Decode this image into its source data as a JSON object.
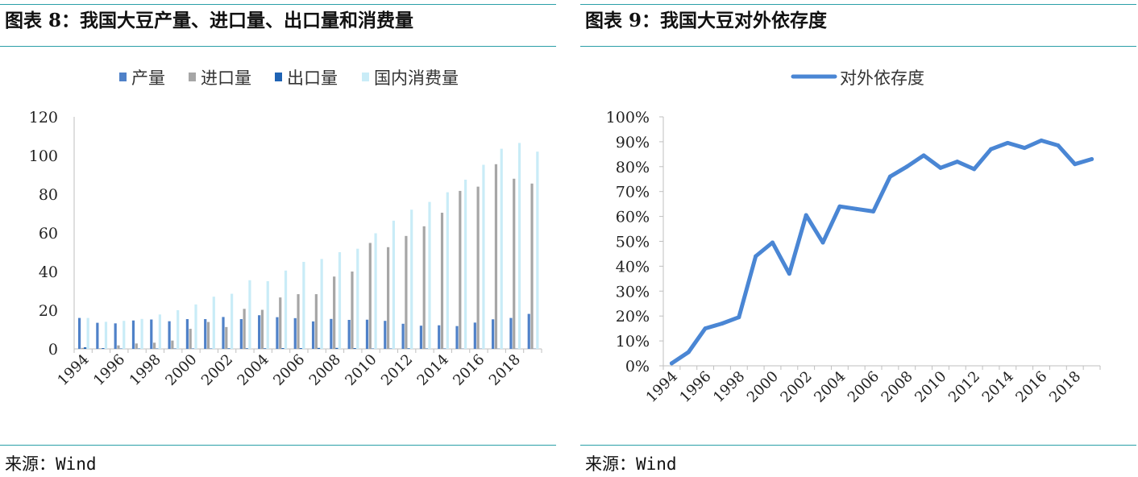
{
  "left": {
    "title": "图表 8：我国大豆产量、进口量、出口量和消费量",
    "source": "来源：Wind"
  },
  "right": {
    "title": "图表 9：我国大豆对外依存度",
    "source": "来源：Wind"
  },
  "colors": {
    "production": "#4f81c8",
    "imports": "#a6a6a6",
    "exports": "#1f63b4",
    "consumption": "#c9ecf7",
    "line": "#4a86d4",
    "rule": "#2a9fa8"
  },
  "chart_data": [
    {
      "type": "bar",
      "title": "",
      "xlabel": "",
      "ylabel": "",
      "ylim": [
        0,
        120
      ],
      "yticks": [
        "0",
        "20",
        "40",
        "60",
        "80",
        "100",
        "120"
      ],
      "x_tick_labels": [
        "1994",
        "1996",
        "1998",
        "2000",
        "2002",
        "2004",
        "2006",
        "2008",
        "2010",
        "2012",
        "2014",
        "2016",
        "2018"
      ],
      "legend_position": "top",
      "categories": [
        "1994",
        "1995",
        "1996",
        "1997",
        "1998",
        "1999",
        "2000",
        "2001",
        "2002",
        "2003",
        "2004",
        "2005",
        "2006",
        "2007",
        "2008",
        "2009",
        "2010",
        "2011",
        "2012",
        "2013",
        "2014",
        "2015",
        "2016",
        "2017",
        "2018",
        "2019"
      ],
      "series": [
        {
          "name": "产量",
          "color": "#4f81c8",
          "values": [
            16,
            13.5,
            13.2,
            14.7,
            15.2,
            14.3,
            15.4,
            15.4,
            16.5,
            15.4,
            17.4,
            16.4,
            15.9,
            14.2,
            15.5,
            15.0,
            15.1,
            14.5,
            13.0,
            12.0,
            12.2,
            11.8,
            13.6,
            15.3,
            16.0,
            18.1
          ]
        },
        {
          "name": "进口量",
          "color": "#a6a6a6",
          "values": [
            0.5,
            0.3,
            1.8,
            2.8,
            3.2,
            4.3,
            10.4,
            13.9,
            11.3,
            20.7,
            20.2,
            26.6,
            28.3,
            28.3,
            37.4,
            40.0,
            54.8,
            52.6,
            58.4,
            63.4,
            70.4,
            81.7,
            83.9,
            95.5,
            88.0,
            85.5
          ]
        },
        {
          "name": "出口量",
          "color": "#1f63b4",
          "values": [
            0.8,
            0.4,
            0.2,
            0.2,
            0.2,
            0.2,
            0.2,
            0.2,
            0.3,
            0.3,
            0.3,
            0.4,
            0.4,
            0.5,
            0.5,
            0.4,
            0.2,
            0.2,
            0.3,
            0.2,
            0.2,
            0.1,
            0.1,
            0.1,
            0.1,
            0.1
          ]
        },
        {
          "name": "国内消费量",
          "color": "#c9ecf7",
          "values": [
            16,
            14,
            14.5,
            15.5,
            17.8,
            20,
            23,
            27,
            28.5,
            35.5,
            35,
            40.5,
            45,
            46.5,
            50,
            51.8,
            59.8,
            66.3,
            72,
            76,
            81,
            87.5,
            95.2,
            103.5,
            106.5,
            102
          ]
        }
      ]
    },
    {
      "type": "line",
      "title": "",
      "xlabel": "",
      "ylabel": "",
      "ylim": [
        0,
        100
      ],
      "yticks": [
        "0%",
        "10%",
        "20%",
        "30%",
        "40%",
        "50%",
        "60%",
        "70%",
        "80%",
        "90%",
        "100%"
      ],
      "x_tick_labels": [
        "1994",
        "1996",
        "1998",
        "2000",
        "2002",
        "2004",
        "2006",
        "2008",
        "2010",
        "2012",
        "2014",
        "2016",
        "2018"
      ],
      "legend_position": "top",
      "x": [
        "1994",
        "1995",
        "1996",
        "1997",
        "1998",
        "1999",
        "2000",
        "2001",
        "2002",
        "2003",
        "2004",
        "2005",
        "2006",
        "2007",
        "2008",
        "2009",
        "2010",
        "2011",
        "2012",
        "2013",
        "2014",
        "2015",
        "2016",
        "2017",
        "2018",
        "2019"
      ],
      "series": [
        {
          "name": "对外依存度",
          "color": "#4a86d4",
          "values": [
            1,
            5.5,
            15,
            17,
            19.5,
            44,
            49.5,
            37,
            60.5,
            49.5,
            64,
            63,
            62,
            76,
            80,
            84.5,
            79.5,
            82,
            79,
            87,
            89.5,
            87.5,
            90.5,
            88.5,
            81,
            83
          ]
        }
      ]
    }
  ]
}
